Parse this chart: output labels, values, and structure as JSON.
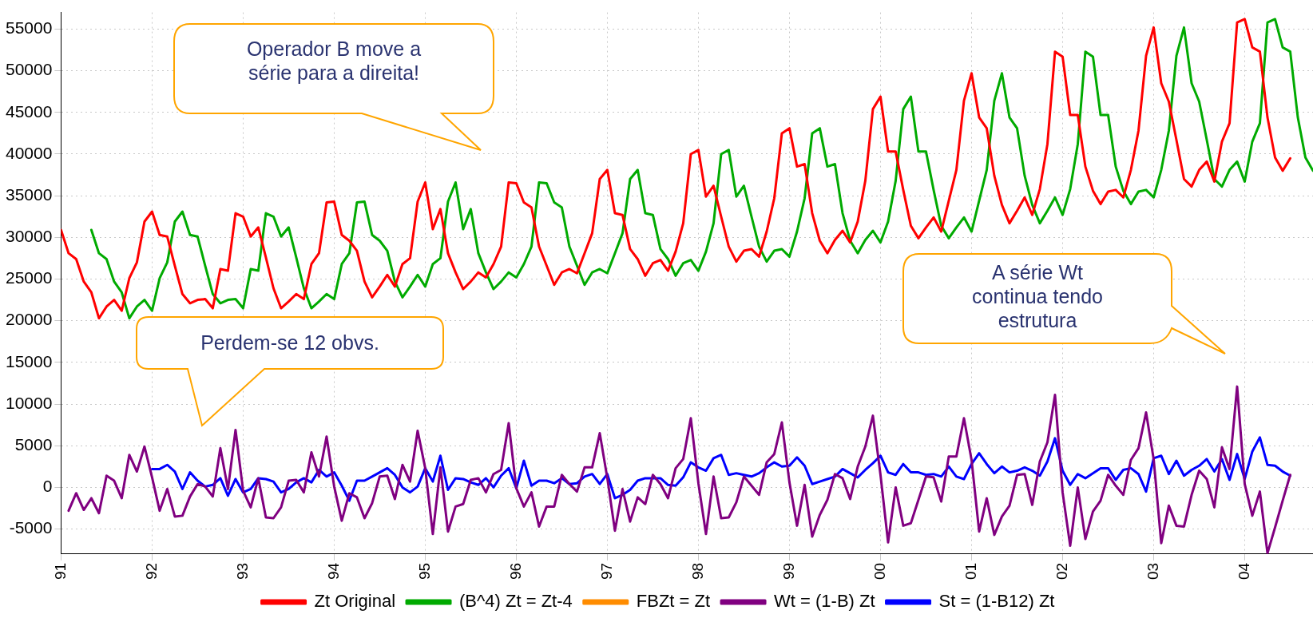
{
  "chart_data": {
    "type": "line",
    "x": [
      "1991-01",
      "1991-02",
      "1991-03",
      "1991-04",
      "1991-05",
      "1991-06",
      "1991-07",
      "1991-08",
      "1991-09",
      "1991-10",
      "1991-11",
      "1991-12",
      "1992-01",
      "1992-02",
      "1992-03",
      "1992-04",
      "1992-05",
      "1992-06",
      "1992-07",
      "1992-08",
      "1992-09",
      "1992-10",
      "1992-11",
      "1992-12",
      "1993-01",
      "1993-02",
      "1993-03",
      "1993-04",
      "1993-05",
      "1993-06",
      "1993-07",
      "1993-08",
      "1993-09",
      "1993-10",
      "1993-11",
      "1993-12",
      "1994-01",
      "1994-02",
      "1994-03",
      "1994-04",
      "1994-05",
      "1994-06",
      "1994-07",
      "1994-08",
      "1994-09",
      "1994-10",
      "1994-11",
      "1994-12",
      "1995-01",
      "1995-02",
      "1995-03",
      "1995-04",
      "1995-05",
      "1995-06",
      "1995-07",
      "1995-08",
      "1995-09",
      "1995-10",
      "1995-11",
      "1995-12",
      "1996-01",
      "1996-02",
      "1996-03",
      "1996-04",
      "1996-05",
      "1996-06",
      "1996-07",
      "1996-08",
      "1996-09",
      "1996-10",
      "1996-11",
      "1996-12",
      "1997-01",
      "1997-02",
      "1997-03",
      "1997-04",
      "1997-05",
      "1997-06",
      "1997-07",
      "1997-08",
      "1997-09",
      "1997-10",
      "1997-11",
      "1997-12",
      "1998-01",
      "1998-02",
      "1998-03",
      "1998-04",
      "1998-05",
      "1998-06",
      "1998-07",
      "1998-08",
      "1998-09",
      "1998-10",
      "1998-11",
      "1998-12",
      "1999-01",
      "1999-02",
      "1999-03",
      "1999-04",
      "1999-05",
      "1999-06",
      "1999-07",
      "1999-08",
      "1999-09",
      "1999-10",
      "1999-11",
      "1999-12",
      "2000-01",
      "2000-02",
      "2000-03",
      "2000-04",
      "2000-05",
      "2000-06",
      "2000-07",
      "2000-08",
      "2000-09",
      "2000-10",
      "2000-11",
      "2000-12",
      "2001-01",
      "2001-02",
      "2001-03",
      "2001-04",
      "2001-05",
      "2001-06",
      "2001-07",
      "2001-08",
      "2001-09",
      "2001-10",
      "2001-11",
      "2001-12",
      "2002-01",
      "2002-02",
      "2002-03",
      "2002-04",
      "2002-05",
      "2002-06",
      "2002-07",
      "2002-08",
      "2002-09",
      "2002-10",
      "2002-11",
      "2002-12",
      "2003-01",
      "2003-02",
      "2003-03",
      "2003-04",
      "2003-05",
      "2003-06",
      "2003-07",
      "2003-08",
      "2003-09",
      "2003-10",
      "2003-11",
      "2003-12",
      "2004-01",
      "2004-02",
      "2004-03",
      "2004-04",
      "2004-05",
      "2004-06",
      "2004-07"
    ],
    "series": [
      {
        "name": "Zt Original",
        "color": "#ff0000",
        "values": [
          30900,
          28100,
          27400,
          24700,
          23400,
          20300,
          21700,
          22500,
          21200,
          25100,
          27000,
          31900,
          33100,
          30300,
          30100,
          26600,
          23200,
          22100,
          22500,
          22600,
          21500,
          26200,
          26000,
          32900,
          32500,
          30100,
          31200,
          27600,
          23900,
          21500,
          22300,
          23200,
          22600,
          26800,
          28100,
          34200,
          34300,
          30300,
          29600,
          28400,
          24700,
          22800,
          24100,
          25500,
          24100,
          26800,
          27500,
          34300,
          36600,
          31000,
          33400,
          28100,
          25800,
          23800,
          24700,
          25800,
          25200,
          26800,
          28900,
          36600,
          36500,
          34200,
          33600,
          28900,
          26600,
          24300,
          25800,
          26200,
          25700,
          28100,
          30500,
          37000,
          38100,
          32900,
          32700,
          28600,
          27400,
          25400,
          26900,
          27300,
          26000,
          28300,
          31700,
          40000,
          40500,
          34900,
          36200,
          32500,
          28900,
          27100,
          28400,
          28600,
          27700,
          30700,
          34700,
          42500,
          43100,
          38500,
          38800,
          32900,
          29600,
          28100,
          29700,
          30800,
          29400,
          31900,
          36800,
          45400,
          46900,
          40300,
          40300,
          35700,
          31400,
          29900,
          31200,
          32400,
          30700,
          34400,
          38100,
          46400,
          49700,
          44400,
          43100,
          37400,
          33900,
          31700,
          33200,
          34800,
          32700,
          35800,
          41200,
          52300,
          51700,
          44700,
          44700,
          38500,
          35600,
          34000,
          35500,
          35700,
          34800,
          38100,
          42800,
          51800,
          55200,
          48500,
          46300,
          41700,
          37000,
          36100,
          38100,
          39100,
          36700,
          41500,
          43700,
          55800,
          56200,
          52800,
          52300,
          44400,
          39600,
          38000,
          39500
        ]
      },
      {
        "name": "(B^4) Zt = Zt-4",
        "color": "#00aa00",
        "x": [
          "1991-05",
          "1991-06",
          "1991-07",
          "1991-08",
          "1991-09",
          "1991-10",
          "1991-11",
          "1991-12",
          "1992-01",
          "1992-02",
          "1992-03",
          "1992-04",
          "1992-05",
          "1992-06",
          "1992-07",
          "1992-08",
          "1992-09",
          "1992-10",
          "1992-11",
          "1992-12",
          "1993-01",
          "1993-02",
          "1993-03",
          "1993-04",
          "1993-05",
          "1993-06",
          "1993-07",
          "1993-08",
          "1993-09",
          "1993-10",
          "1993-11",
          "1993-12",
          "1994-01",
          "1994-02",
          "1994-03",
          "1994-04",
          "1994-05",
          "1994-06",
          "1994-07",
          "1994-08",
          "1994-09",
          "1994-10",
          "1994-11",
          "1994-12",
          "1995-01",
          "1995-02",
          "1995-03",
          "1995-04",
          "1995-05",
          "1995-06",
          "1995-07",
          "1995-08",
          "1995-09",
          "1995-10",
          "1995-11",
          "1995-12",
          "1996-01",
          "1996-02",
          "1996-03",
          "1996-04",
          "1996-05",
          "1996-06",
          "1996-07",
          "1996-08",
          "1996-09",
          "1996-10",
          "1996-11",
          "1996-12",
          "1997-01",
          "1997-02",
          "1997-03",
          "1997-04",
          "1997-05",
          "1997-06",
          "1997-07",
          "1997-08",
          "1997-09",
          "1997-10",
          "1997-11",
          "1997-12",
          "1998-01",
          "1998-02",
          "1998-03",
          "1998-04",
          "1998-05",
          "1998-06",
          "1998-07",
          "1998-08",
          "1998-09",
          "1998-10",
          "1998-11",
          "1998-12",
          "1999-01",
          "1999-02",
          "1999-03",
          "1999-04",
          "1999-05",
          "1999-06",
          "1999-07",
          "1999-08",
          "1999-09",
          "1999-10",
          "1999-11",
          "1999-12",
          "2000-01",
          "2000-02",
          "2000-03",
          "2000-04",
          "2000-05",
          "2000-06",
          "2000-07",
          "2000-08",
          "2000-09",
          "2000-10",
          "2000-11",
          "2000-12",
          "2001-01",
          "2001-02",
          "2001-03",
          "2001-04",
          "2001-05",
          "2001-06",
          "2001-07",
          "2001-08",
          "2001-09",
          "2001-10",
          "2001-11",
          "2001-12",
          "2002-01",
          "2002-02",
          "2002-03",
          "2002-04",
          "2002-05",
          "2002-06",
          "2002-07",
          "2002-08",
          "2002-09",
          "2002-10",
          "2002-11",
          "2002-12",
          "2003-01",
          "2003-02",
          "2003-03",
          "2003-04",
          "2003-05",
          "2003-06",
          "2003-07",
          "2003-08",
          "2003-09",
          "2003-10",
          "2003-11",
          "2003-12",
          "2004-01",
          "2004-02",
          "2004-03",
          "2004-04",
          "2004-05",
          "2004-06",
          "2004-07",
          "2004-08",
          "2004-09",
          "2004-10"
        ],
        "values": [
          30900,
          28100,
          27400,
          24700,
          23400,
          20300,
          21700,
          22500,
          21200,
          25100,
          27000,
          31900,
          33100,
          30300,
          30100,
          26600,
          23200,
          22100,
          22500,
          22600,
          21500,
          26200,
          26000,
          32900,
          32500,
          30100,
          31200,
          27600,
          23900,
          21500,
          22300,
          23200,
          22600,
          26800,
          28100,
          34200,
          34300,
          30300,
          29600,
          28400,
          24700,
          22800,
          24100,
          25500,
          24100,
          26800,
          27500,
          34300,
          36600,
          31000,
          33400,
          28100,
          25800,
          23800,
          24700,
          25800,
          25200,
          26800,
          28900,
          36600,
          36500,
          34200,
          33600,
          28900,
          26600,
          24300,
          25800,
          26200,
          25700,
          28100,
          30500,
          37000,
          38100,
          32900,
          32700,
          28600,
          27400,
          25400,
          26900,
          27300,
          26000,
          28300,
          31700,
          40000,
          40500,
          34900,
          36200,
          32500,
          28900,
          27100,
          28400,
          28600,
          27700,
          30700,
          34700,
          42500,
          43100,
          38500,
          38800,
          32900,
          29600,
          28100,
          29700,
          30800,
          29400,
          31900,
          36800,
          45400,
          46900,
          40300,
          40300,
          35700,
          31400,
          29900,
          31200,
          32400,
          30700,
          34400,
          38100,
          46400,
          49700,
          44400,
          43100,
          37400,
          33900,
          31700,
          33200,
          34800,
          32700,
          35800,
          41200,
          52300,
          51700,
          44700,
          44700,
          38500,
          35600,
          34000,
          35500,
          35700,
          34800,
          38100,
          42800,
          51800,
          55200,
          48500,
          46300,
          41700,
          37000,
          36100,
          38100,
          39100,
          36700,
          41500,
          43700,
          55800,
          56200,
          52800,
          52300,
          44400,
          39600,
          38000
        ]
      },
      {
        "name": "FBZt = Zt",
        "color": "#ff8c00",
        "values": [
          null,
          null,
          null,
          null,
          null,
          null,
          null,
          null,
          null,
          null,
          null,
          null,
          null,
          null,
          null,
          null,
          null,
          null,
          null,
          null,
          null,
          null,
          null,
          null,
          null,
          null,
          null,
          null,
          null,
          null,
          null,
          null,
          null,
          null,
          null,
          null,
          null,
          null,
          null,
          null,
          null,
          null,
          null,
          null,
          null,
          null,
          null,
          null,
          null,
          null,
          null,
          null,
          null,
          null,
          null,
          null,
          null,
          null,
          null,
          null,
          null,
          null,
          null,
          null,
          null,
          null,
          null,
          null,
          null,
          null,
          null,
          null,
          null,
          null,
          null,
          null,
          null,
          null,
          null,
          null,
          null,
          null,
          null,
          null,
          null,
          null,
          null,
          null,
          null,
          null,
          null,
          null,
          null,
          null,
          null,
          null,
          null,
          null,
          null,
          null,
          null,
          null,
          null,
          null,
          null,
          null,
          null,
          null,
          null,
          null,
          null,
          null,
          null,
          null,
          null,
          null,
          null,
          null,
          null,
          null,
          null,
          null,
          null,
          null,
          null,
          null,
          null,
          null,
          null,
          null,
          null,
          null,
          null,
          null,
          null,
          null,
          null,
          null,
          null,
          null,
          null,
          null,
          null,
          null,
          null,
          null,
          null,
          null,
          null,
          null,
          null,
          null,
          null,
          null,
          null,
          null,
          null,
          null,
          null,
          null,
          null,
          null,
          null
        ]
      },
      {
        "name": "Wt = (1-B) Zt",
        "color": "#800080",
        "values": [
          null,
          -2800,
          -700,
          -2700,
          -1300,
          -3100,
          1400,
          800,
          -1300,
          3900,
          1900,
          4900,
          1200,
          -2800,
          -200,
          -3500,
          -3400,
          -1100,
          400,
          100,
          -1100,
          4700,
          -200,
          6900,
          -400,
          -2400,
          1100,
          -3600,
          -3700,
          -2400,
          800,
          900,
          -600,
          4200,
          1300,
          6100,
          100,
          -4000,
          -700,
          -1200,
          -3700,
          -1900,
          1300,
          1400,
          -1400,
          2700,
          700,
          6800,
          2300,
          -5600,
          2400,
          -5300,
          -2300,
          -2000,
          900,
          1100,
          -600,
          1600,
          2100,
          7700,
          -100,
          -2300,
          -600,
          -4700,
          -2300,
          -2300,
          1500,
          400,
          -500,
          2400,
          2400,
          6500,
          1100,
          -5200,
          -200,
          -4100,
          -1200,
          -2000,
          1500,
          400,
          -1300,
          2300,
          3400,
          8300,
          500,
          -5600,
          1300,
          -3700,
          -3600,
          -1800,
          1300,
          200,
          -900,
          3000,
          4000,
          7800,
          600,
          -4600,
          300,
          -5900,
          -3300,
          -1500,
          1600,
          1100,
          -1400,
          2500,
          4900,
          8600,
          1500,
          -6600,
          0,
          -4600,
          -4300,
          -1500,
          1300,
          1200,
          -1700,
          3700,
          3700,
          8300,
          3300,
          -5300,
          -1300,
          -5700,
          -3500,
          -2200,
          1500,
          1600,
          -2100,
          3100,
          5400,
          11100,
          -600,
          -7000,
          0,
          -6200,
          -2900,
          -1600,
          1500,
          200,
          -900,
          3300,
          4700,
          9000,
          3400,
          -6700,
          -2200,
          -4600,
          -4700,
          -900,
          2000,
          1000,
          -2400,
          4800,
          2200,
          12100,
          400,
          -3400,
          -500,
          -7900,
          -4800,
          -1600,
          1500
        ]
      },
      {
        "name": "St = (1-B12) Zt",
        "color": "#0000ff",
        "values": [
          null,
          null,
          null,
          null,
          null,
          null,
          null,
          null,
          null,
          null,
          null,
          null,
          2200,
          2200,
          2700,
          1900,
          -200,
          1800,
          800,
          100,
          300,
          1100,
          -1000,
          1000,
          -600,
          -200,
          1100,
          1000,
          700,
          -600,
          -200,
          600,
          1100,
          600,
          2100,
          1300,
          1800,
          200,
          -1600,
          800,
          800,
          1300,
          1800,
          2300,
          1500,
          0,
          -600,
          100,
          2300,
          700,
          3800,
          -300,
          1100,
          1000,
          600,
          300,
          1100,
          0,
          1400,
          2300,
          -100,
          3200,
          200,
          800,
          800,
          500,
          1100,
          400,
          500,
          1300,
          1600,
          400,
          1600,
          -1300,
          -900,
          -300,
          800,
          1100,
          1100,
          1100,
          300,
          200,
          1200,
          3000,
          2400,
          2000,
          3500,
          3900,
          1500,
          1700,
          1500,
          1300,
          1700,
          2400,
          3000,
          2500,
          2600,
          3600,
          2600,
          400,
          700,
          1000,
          1300,
          2200,
          1700,
          1200,
          2100,
          2900,
          3800,
          1800,
          1500,
          2800,
          1800,
          1800,
          1500,
          1600,
          1300,
          2500,
          1300,
          1000,
          2800,
          4100,
          2800,
          1700,
          2500,
          1800,
          2000,
          2400,
          2000,
          1400,
          3100,
          5900,
          2000,
          300,
          1600,
          1100,
          1700,
          2300,
          2300,
          900,
          2100,
          2300,
          1600,
          -500,
          3500,
          3800,
          1600,
          3200,
          1400,
          2100,
          2600,
          3400,
          1900,
          3400,
          900,
          4000,
          1000,
          4300,
          6000,
          2700,
          2600,
          1900,
          1400
        ]
      }
    ],
    "xlim": [
      "1991-01",
      "2004-10"
    ],
    "xticks": [
      {
        "value": "1991-01",
        "label": "91"
      },
      {
        "value": "1992-01",
        "label": "92"
      },
      {
        "value": "1993-01",
        "label": "93"
      },
      {
        "value": "1994-01",
        "label": "94"
      },
      {
        "value": "1995-01",
        "label": "95"
      },
      {
        "value": "1996-01",
        "label": "96"
      },
      {
        "value": "1997-01",
        "label": "97"
      },
      {
        "value": "1998-01",
        "label": "98"
      },
      {
        "value": "1999-01",
        "label": "99"
      },
      {
        "value": "2000-01",
        "label": "00"
      },
      {
        "value": "2001-01",
        "label": "01"
      },
      {
        "value": "2002-01",
        "label": "02"
      },
      {
        "value": "2003-01",
        "label": "03"
      },
      {
        "value": "2004-01",
        "label": "04"
      }
    ],
    "ylim": [
      -8000,
      57000
    ],
    "yticks": [
      -5000,
      0,
      5000,
      10000,
      15000,
      20000,
      25000,
      30000,
      35000,
      40000,
      45000,
      50000,
      55000
    ],
    "grid": true,
    "legend": "bottom",
    "marker": "none",
    "line_style": "solid",
    "annotations": [
      "Operador B move a série para a direita!",
      "Perdem-se 12 obvs.",
      "A série Wt continua tendo estrutura"
    ]
  }
}
